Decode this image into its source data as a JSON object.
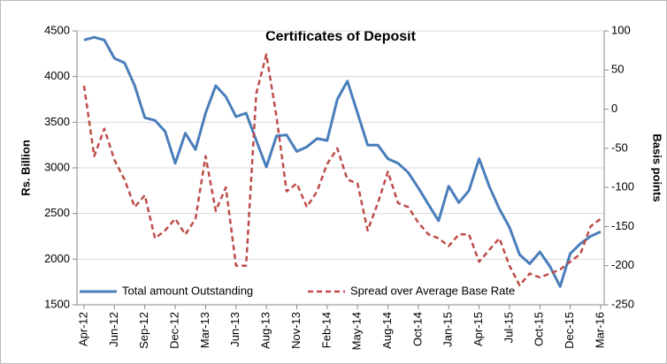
{
  "chart_data": {
    "type": "line",
    "title": "Certificates of Deposit",
    "y_label": "Rs. Billion",
    "y2_label": "Basis points",
    "categories": [
      "Apr-12",
      null,
      null,
      "Jun-12",
      null,
      null,
      "Sep-12",
      null,
      null,
      "Dec-12",
      null,
      null,
      "Mar-13",
      null,
      null,
      "Jun-13",
      null,
      null,
      "Aug-13",
      null,
      null,
      "Nov-13",
      null,
      null,
      "Feb-14",
      null,
      null,
      "May-14",
      null,
      null,
      "Aug-14",
      null,
      null,
      "Oct-14",
      null,
      null,
      "Jan-15",
      null,
      null,
      "Apr-15",
      null,
      null,
      "Jul-15",
      null,
      null,
      "Oct-15",
      null,
      null,
      "Dec-15",
      null,
      null,
      "Mar-16"
    ],
    "series": [
      {
        "name": "Total amount Outstanding",
        "color": "#4a7ebb",
        "axis": "y",
        "values": [
          4400,
          4430,
          4400,
          4200,
          4150,
          3900,
          3550,
          3520,
          3400,
          3050,
          3380,
          3200,
          3600,
          3900,
          3780,
          3560,
          3600,
          3300,
          3010,
          3350,
          3360,
          3180,
          3230,
          3320,
          3300,
          3750,
          3950,
          3600,
          3250,
          3250,
          3100,
          3050,
          2950,
          2780,
          2600,
          2420,
          2800,
          2620,
          2750,
          3100,
          2800,
          2550,
          2350,
          2050,
          1950,
          2080,
          1920,
          1700,
          2060,
          2170,
          2250,
          2300
        ]
      },
      {
        "name": "Spread over Average Base Rate",
        "color": "#be4b48",
        "axis": "y2",
        "dashed": true,
        "values": [
          30,
          -60,
          -25,
          -65,
          -90,
          -125,
          -110,
          -165,
          -155,
          -140,
          -160,
          -140,
          -60,
          -130,
          -100,
          -200,
          -200,
          20,
          70,
          -10,
          -105,
          -95,
          -125,
          -105,
          -70,
          -50,
          -90,
          -95,
          -155,
          -120,
          -80,
          -120,
          -125,
          -145,
          -160,
          -165,
          -175,
          -160,
          -160,
          -195,
          -180,
          -165,
          -200,
          -225,
          -210,
          -215,
          -210,
          -205,
          -195,
          -185,
          -150,
          -140
        ]
      }
    ],
    "ylim": [
      1500,
      4500
    ],
    "yticks": [
      1500,
      2000,
      2500,
      3000,
      3500,
      4000,
      4500
    ],
    "y2lim": [
      -250,
      100
    ],
    "y2ticks": [
      -250,
      -200,
      -150,
      -100,
      -50,
      0,
      50,
      100
    ],
    "grid": true,
    "legend": "bottom"
  }
}
